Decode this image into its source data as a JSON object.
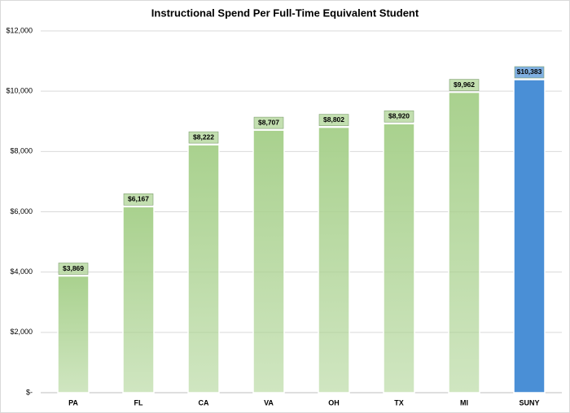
{
  "chart_data": {
    "type": "bar",
    "title": "Instructional Spend Per Full-Time Equivalent Student",
    "categories": [
      "PA",
      "FL",
      "CA",
      "VA",
      "OH",
      "TX",
      "MI",
      "SUNY"
    ],
    "values": [
      3869,
      6167,
      8222,
      8707,
      8802,
      8920,
      9962,
      10383
    ],
    "value_labels": [
      "$3,869",
      "$6,167",
      "$8,222",
      "$8,707",
      "$8,802",
      "$8,920",
      "$9,962",
      "$10,383"
    ],
    "colors": [
      "#a9d18e",
      "#a9d18e",
      "#a9d18e",
      "#a9d18e",
      "#a9d18e",
      "#a9d18e",
      "#a9d18e",
      "#4a8fd6"
    ],
    "ylim": [
      0,
      12000
    ],
    "yticks": [
      {
        "value": 0,
        "label": "$-"
      },
      {
        "value": 2000,
        "label": "$2,000"
      },
      {
        "value": 4000,
        "label": "$4,000"
      },
      {
        "value": 6000,
        "label": "$6,000"
      },
      {
        "value": 8000,
        "label": "$8,000"
      },
      {
        "value": 10000,
        "label": "$10,000"
      },
      {
        "value": 12000,
        "label": "$12,000"
      }
    ],
    "grid": true
  }
}
